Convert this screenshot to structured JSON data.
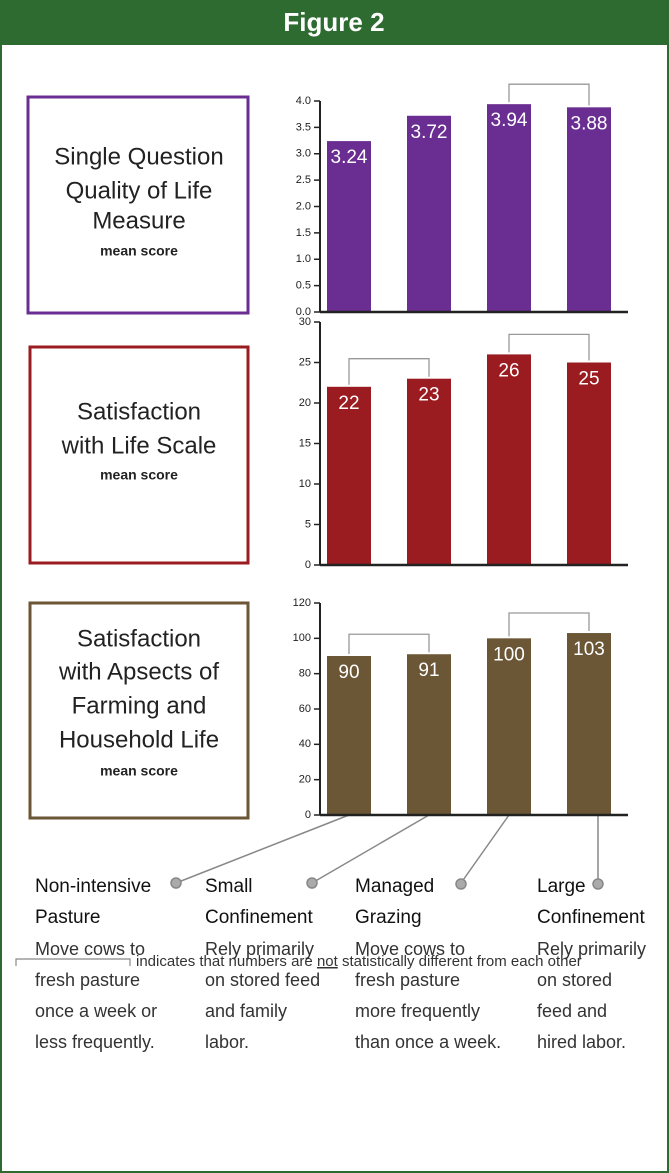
{
  "header": {
    "title": "Figure 2"
  },
  "chart_data": [
    {
      "type": "bar",
      "label_lines": [
        "Single Question",
        "Quality of Life",
        "Measure"
      ],
      "subtitle": "mean score",
      "values": [
        3.24,
        3.72,
        3.94,
        3.88
      ],
      "color": "#6a2d91",
      "box_color": "#6a2d91",
      "ylim": [
        0,
        4
      ],
      "yticks": [
        {
          "value": 0,
          "label": "0.0"
        },
        0.5,
        {
          "value": 1,
          "label": "1.0"
        },
        1.5,
        {
          "value": 2,
          "label": "2.0"
        },
        2.5,
        {
          "value": 3,
          "label": "3.0"
        },
        3.5,
        {
          "value": 4,
          "label": "4.0"
        }
      ],
      "brackets": [
        [
          2,
          3
        ]
      ]
    },
    {
      "type": "bar",
      "label_lines": [
        "Satisfaction",
        "with Life Scale"
      ],
      "subtitle": "mean score",
      "values": [
        22,
        23,
        26,
        25
      ],
      "color": "#9b1c20",
      "box_color": "#9b1c20",
      "ylim": [
        0,
        30
      ],
      "yticks": [
        0,
        5,
        10,
        15,
        20,
        25,
        30
      ],
      "brackets": [
        [
          0,
          1
        ],
        [
          2,
          3
        ]
      ]
    },
    {
      "type": "bar",
      "label_lines": [
        "Satisfaction",
        "with Apsects of",
        "Farming and",
        "Household Life"
      ],
      "subtitle": "mean score",
      "values": [
        90,
        91,
        100,
        103
      ],
      "color": "#6b5636",
      "box_color": "#6b5636",
      "ylim": [
        0,
        120
      ],
      "yticks": [
        0,
        20,
        40,
        60,
        80,
        100,
        120
      ],
      "brackets": [
        [
          0,
          1
        ],
        [
          2,
          3
        ]
      ]
    }
  ],
  "groups": [
    {
      "name": [
        "Non-intensive",
        "Pasture"
      ],
      "description": [
        "Move cows to",
        "fresh pasture",
        "once a week or",
        "less frequently."
      ]
    },
    {
      "name": [
        "Small",
        "Confinement"
      ],
      "description": [
        "Rely primarily",
        "on stored feed",
        "and family",
        "labor."
      ]
    },
    {
      "name": [
        "Managed",
        "Grazing"
      ],
      "description": [
        "Move cows to",
        "fresh pasture",
        "more frequently",
        "than once a week."
      ]
    },
    {
      "name": [
        "Large",
        "Confinement"
      ],
      "description": [
        "Rely primarily",
        "on stored",
        "feed and",
        "hired labor."
      ]
    }
  ],
  "note": [
    "indicates that numbers are ",
    "not",
    " statistically different from each other"
  ]
}
